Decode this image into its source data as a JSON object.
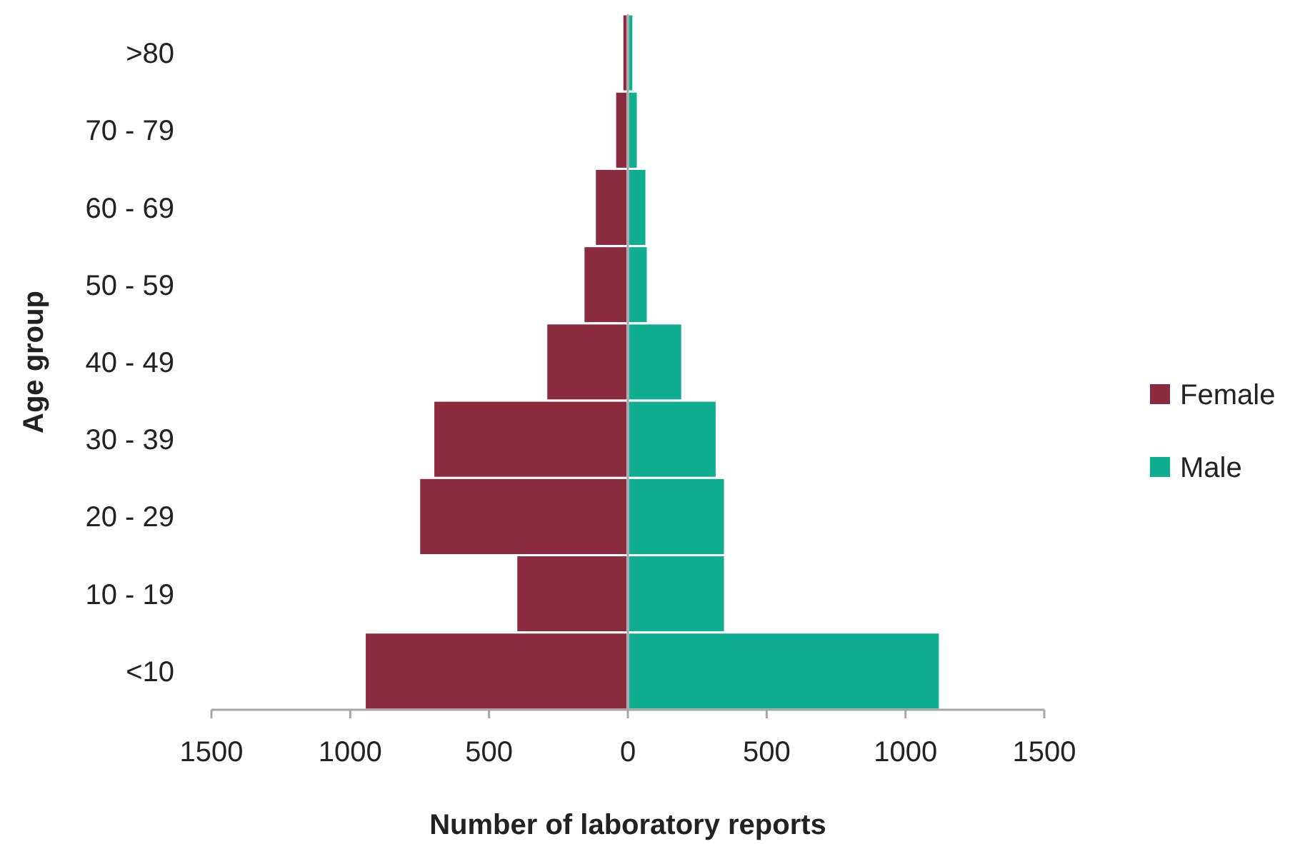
{
  "chart_data": {
    "type": "bar",
    "orientation": "horizontal",
    "xlabel": "Number of laboratory reports",
    "ylabel": "Age group",
    "categories": [
      ">80",
      "70 - 79",
      "60 - 69",
      "50 - 59",
      "40 - 49",
      "30 - 39",
      "20 - 29",
      "10 - 19",
      "<10"
    ],
    "series": [
      {
        "name": "Female",
        "color": "#8b2b3e",
        "values": [
          -20,
          -46,
          -119,
          -160,
          -294,
          -701,
          -752,
          -402,
          -948
        ]
      },
      {
        "name": "Male",
        "color": "#0fae91",
        "values": [
          20,
          36,
          67,
          72,
          196,
          320,
          350,
          350,
          1124
        ]
      }
    ],
    "xlim": [
      -1500,
      1500
    ],
    "xticks": [
      {
        "value": -1500,
        "label": "1500"
      },
      {
        "value": -1000,
        "label": "1000"
      },
      {
        "value": -500,
        "label": "500"
      },
      0,
      500,
      1000,
      1500
    ],
    "stacked": true,
    "legend": "right"
  }
}
